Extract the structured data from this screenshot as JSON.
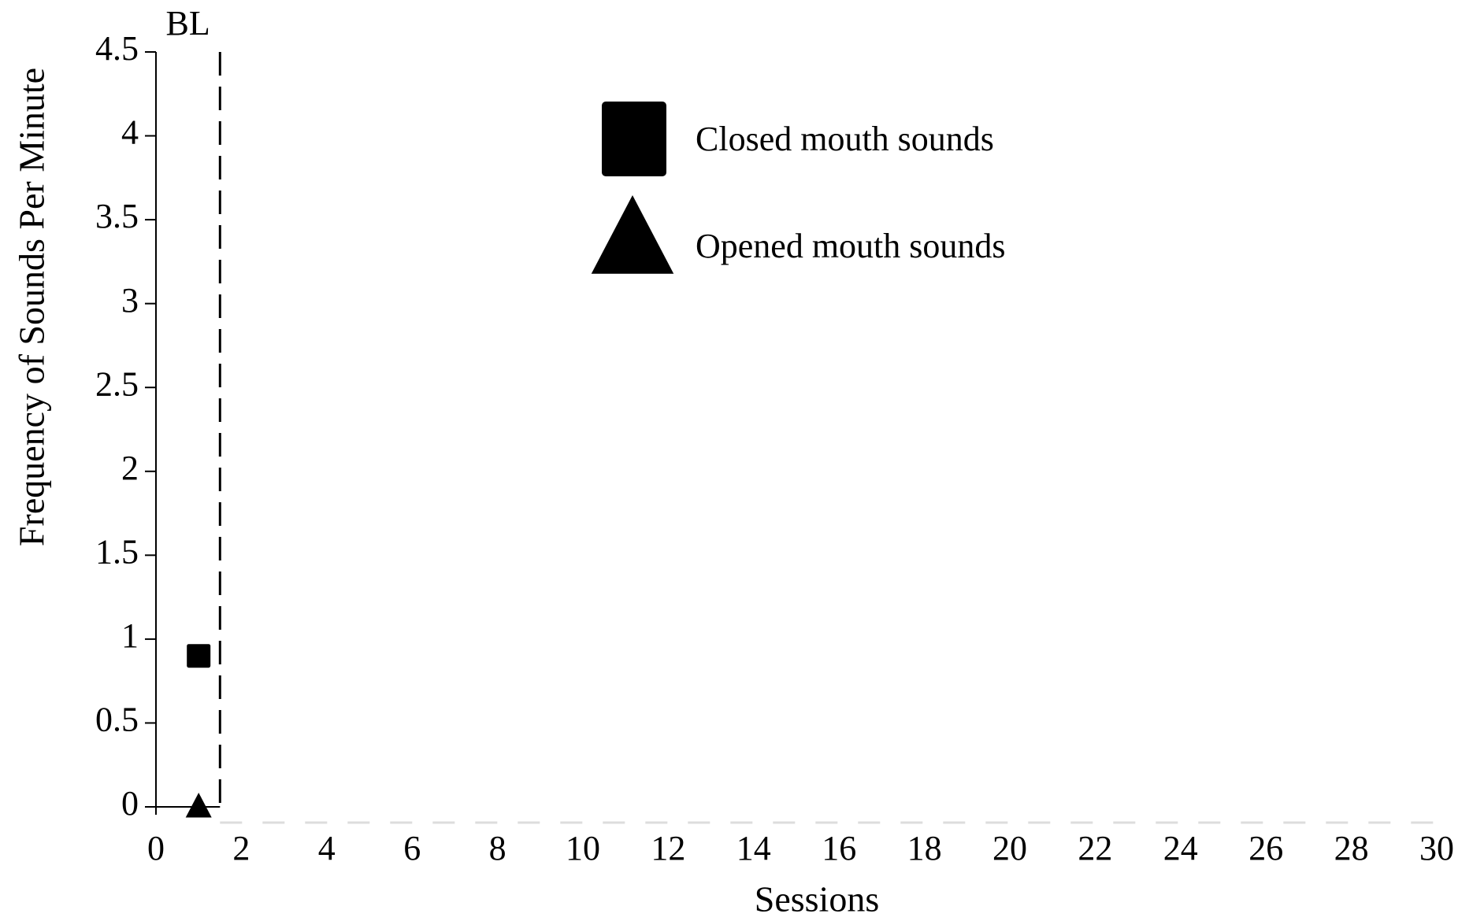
{
  "chart_data": {
    "type": "scatter",
    "x_label": "Sessions",
    "y_label": "Frequency of Sounds Per Minute",
    "xlim": [
      0,
      30
    ],
    "xticks": [
      0,
      2,
      4,
      6,
      8,
      10,
      12,
      14,
      16,
      18,
      20,
      22,
      24,
      26,
      28,
      30
    ],
    "ylim": [
      0,
      4.5
    ],
    "yticks": [
      0,
      0.5,
      1,
      1.5,
      2,
      2.5,
      3,
      3.5,
      4,
      4.5
    ],
    "phase_lines": [
      {
        "x": 1.5,
        "label": "BL"
      }
    ],
    "series": [
      {
        "name": "Closed mouth sounds",
        "color": "#000000",
        "marker": "square",
        "x": [
          1
        ],
        "values": [
          0.9
        ]
      },
      {
        "name": "Opened mouth sounds",
        "color": "#000000",
        "marker": "triangle",
        "x": [
          1
        ],
        "values": [
          0
        ]
      }
    ]
  }
}
